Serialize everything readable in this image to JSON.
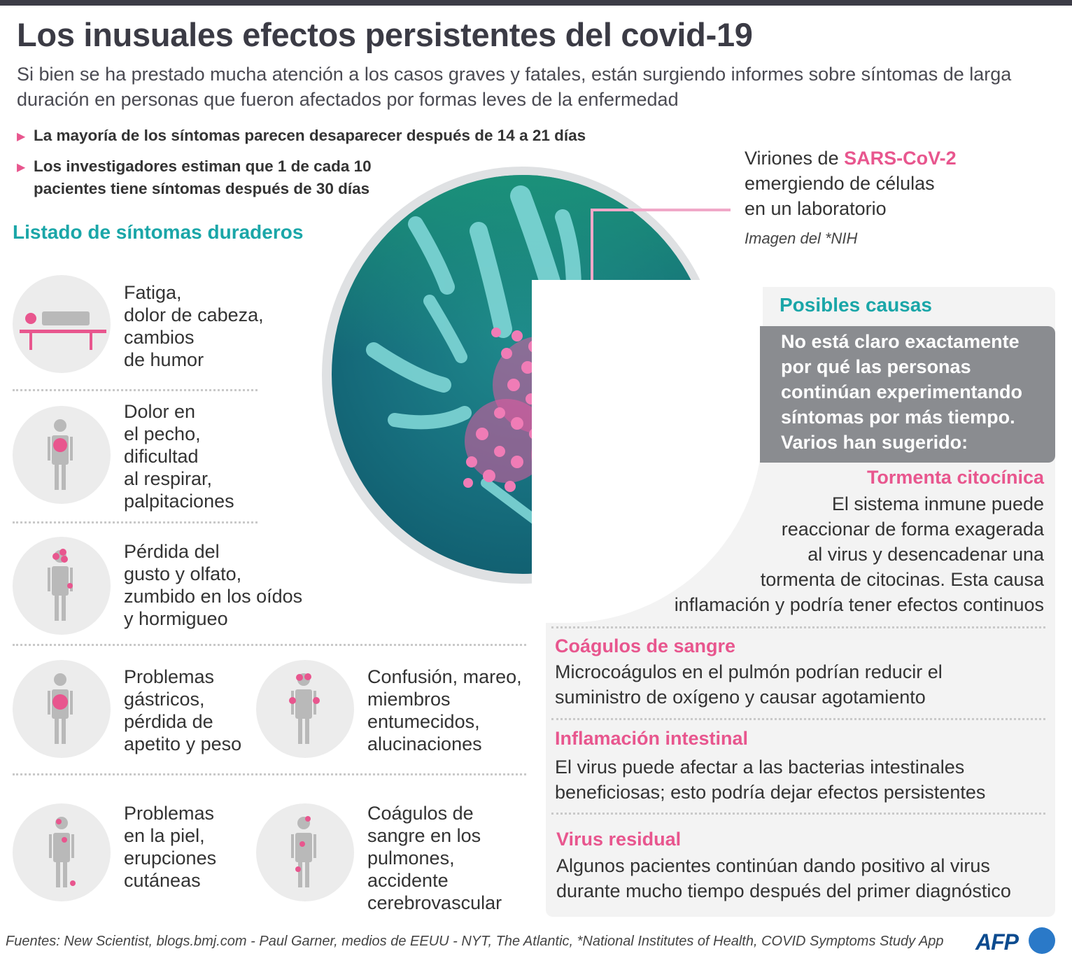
{
  "title": "Los inusuales efectos persistentes del covid-19",
  "subtitle": "Si bien se ha prestado mucha atención a los casos graves y fatales, están surgiendo informes sobre síntomas de larga duración en personas que fueron afectados por formas leves de la enfermedad",
  "bullets": [
    "La mayoría de los síntomas parecen desaparecer después de 14 a 21 días",
    "Los investigadores estiman que 1 de cada 10 pacientes tiene síntomas después de 30 días"
  ],
  "list_title": "Listado de síntomas duraderos",
  "symptoms": [
    {
      "lines": [
        "Fatiga,",
        "dolor de cabeza,",
        "cambios",
        "de humor"
      ],
      "icon": "bed-icon"
    },
    {
      "lines": [
        "Dolor en",
        "el pecho,",
        "dificultad",
        "al respirar,",
        "palpitaciones"
      ],
      "icon": "person-chest-icon"
    },
    {
      "lines": [
        "Pérdida del",
        "gusto y olfato,",
        "zumbido en los oídos",
        "y hormigueo"
      ],
      "icon": "person-head-icon"
    },
    {
      "lines": [
        "Problemas",
        "gástricos,",
        "pérdida de",
        "apetito y peso"
      ],
      "icon": "person-stomach-icon"
    },
    {
      "lines": [
        "Confusión, mareo,",
        "miembros",
        "entumecidos,",
        "alucinaciones"
      ],
      "icon": "person-limbs-icon"
    },
    {
      "lines": [
        "Problemas",
        "en la piel,",
        "erupciones",
        "cutáneas"
      ],
      "icon": "person-skin-icon"
    },
    {
      "lines": [
        "Coágulos de",
        "sangre en los",
        "pulmones,",
        "accidente",
        "cerebrovascular"
      ],
      "icon": "person-clots-icon"
    }
  ],
  "virion": {
    "prefix": "Viriones de ",
    "highlight": "SARS-CoV-2",
    "line2": "emergiendo de células",
    "line3": "en un laboratorio",
    "credit": "Imagen del *NIH"
  },
  "causes": {
    "title": "Posibles causas",
    "intro": "No está claro exactamente por qué las personas continúan experimentando síntomas por más tiempo. Varios han sugerido:",
    "items": [
      {
        "heading": "Tormenta citocínica",
        "lines": [
          "El sistema inmune puede",
          "reaccionar de forma exagerada",
          "al virus y desencadenar una",
          "tormenta de citocinas. Esta causa",
          "inflamación y podría tener efectos continuos"
        ]
      },
      {
        "heading": "Coágulos de sangre",
        "lines": [
          "Microcoágulos en el pulmón podrían reducir el",
          "suministro de oxígeno y causar agotamiento"
        ]
      },
      {
        "heading": "Inflamación intestinal",
        "lines": [
          "El virus puede afectar a las bacterias intestinales",
          "beneficiosas; esto podría dejar efectos persistentes"
        ]
      },
      {
        "heading": "Virus residual",
        "lines": [
          "Algunos pacientes continúan dando positivo al virus",
          "durante mucho tiempo después del primer diagnóstico"
        ]
      }
    ]
  },
  "sources": "Fuentes: New Scientist, blogs.bmj.com - Paul Garner,  medios de EEUU - NYT, The Atlantic, *National Institutes of Health, COVID Symptoms Study App",
  "logo": "AFP",
  "colors": {
    "accent_pink": "#e8568e",
    "accent_teal": "#1aa6a8",
    "grey_box": "#8a8c90",
    "dark": "#3b3b45"
  }
}
